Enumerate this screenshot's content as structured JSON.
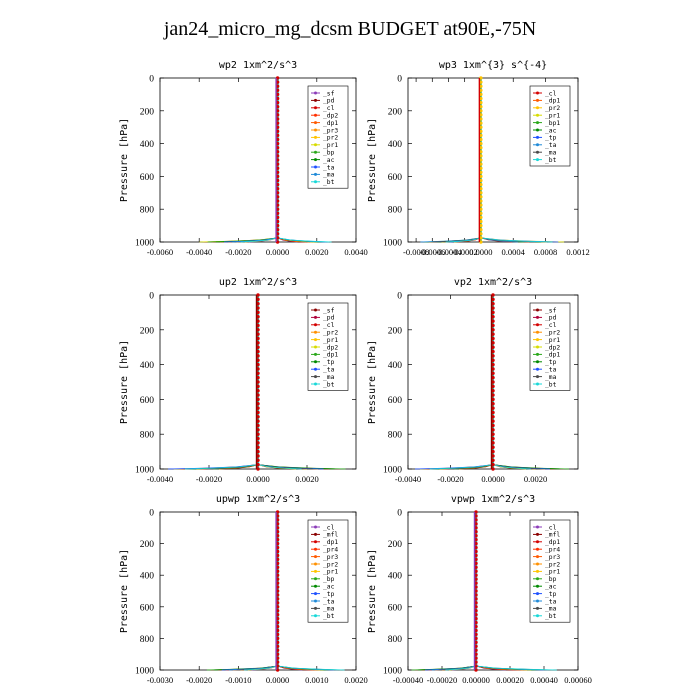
{
  "page": {
    "title": "jan24_micro_mg_dcsm  BUDGET at90E,-75N"
  },
  "chart_data": [
    {
      "type": "line",
      "title": "wp2   1xm^2/s^3",
      "ylabel": "Pressure [hPa]",
      "ylim": [
        1000,
        0
      ],
      "xlim": [
        -0.006,
        0.004
      ],
      "xticks": [
        -0.006,
        -0.004,
        -0.002,
        0.0,
        0.002,
        0.004
      ],
      "xtick_labels": [
        "-0.0060",
        "-0.0040",
        "-0.0020",
        "0.0000",
        "0.0020",
        "0.0040"
      ],
      "yticks": [
        0,
        200,
        400,
        600,
        800,
        1000
      ],
      "ytick_labels": [
        "0",
        "200",
        "400",
        "600",
        "800",
        "1000"
      ],
      "legend_position": "upper-right",
      "legend": [
        "_sf",
        "_pd",
        "_cl",
        "_dp2",
        "_dp1",
        "_pr3",
        "_pr2",
        "_pr1",
        "_bp",
        "_ac",
        "_ta",
        "_ma",
        "_bt"
      ],
      "colors": [
        "#8b3bb8",
        "#8b0000",
        "#d40000",
        "#ff3000",
        "#ff5a00",
        "#ff9000",
        "#ffc400",
        "#d7dc00",
        "#2aa81a",
        "#008a00",
        "#1e50ff",
        "#1f8ad8",
        "#18d8d8"
      ],
      "surface_spread": [
        -0.0042,
        0.0029
      ]
    },
    {
      "type": "line",
      "title": "wp3   1xm^{3} s^{-4}",
      "ylabel": "Pressure [hPa]",
      "ylim": [
        1000,
        0
      ],
      "xlim": [
        -0.0009,
        0.0012
      ],
      "xticks": [
        -0.0008,
        -0.0006,
        -0.0004,
        -0.0002,
        0.0,
        0.0004,
        0.0008,
        0.0012
      ],
      "xtick_labels": [
        "-0.0008",
        "-0.0006",
        "-0.0004",
        "-0.0002",
        "0.0000",
        "0.0004",
        "0.0008",
        "0.0012"
      ],
      "yticks": [
        0,
        200,
        400,
        600,
        800,
        1000
      ],
      "ytick_labels": [
        "0",
        "200",
        "400",
        "600",
        "800",
        "1000"
      ],
      "legend_position": "upper-right",
      "legend": [
        "_cl",
        "_dp1",
        "_pr2",
        "_pr1",
        "_bp1",
        "_ac",
        "_tp",
        "_ta",
        "_ma",
        "_bt"
      ],
      "colors": [
        "#d40000",
        "#ff5a00",
        "#ffc400",
        "#d7dc00",
        "#2aa81a",
        "#008a00",
        "#1e50ff",
        "#1f8ad8",
        "#4a4a4a",
        "#18d8d8"
      ],
      "surface_spread": [
        -0.0008,
        0.0011
      ]
    },
    {
      "type": "line",
      "title": "up2   1xm^2/s^3",
      "ylabel": "Pressure [hPa]",
      "ylim": [
        1000,
        0
      ],
      "xlim": [
        -0.004,
        0.004
      ],
      "xticks": [
        -0.004,
        -0.002,
        0.0,
        0.002
      ],
      "xtick_labels": [
        "-0.0040",
        "-0.0020",
        "0.0000",
        "0.0020"
      ],
      "yticks": [
        0,
        200,
        400,
        600,
        800,
        1000
      ],
      "ytick_labels": [
        "0",
        "200",
        "400",
        "600",
        "800",
        "1000"
      ],
      "legend_position": "upper-right",
      "legend": [
        "_sf",
        "_pd",
        "_cl",
        "_pr2",
        "_pr1",
        "_dp2",
        "_dp1",
        "_tp",
        "_ta",
        "_ma",
        "_bt"
      ],
      "colors": [
        "#8b0000",
        "#b0003a",
        "#d40000",
        "#ff9000",
        "#ffc400",
        "#d7dc00",
        "#2aa81a",
        "#008a00",
        "#1e50ff",
        "#4a4a4a",
        "#18d8d8"
      ],
      "surface_spread": [
        -0.0039,
        0.0038
      ]
    },
    {
      "type": "line",
      "title": "vp2   1xm^2/s^3",
      "ylabel": "Pressure [hPa]",
      "ylim": [
        1000,
        0
      ],
      "xlim": [
        -0.004,
        0.004
      ],
      "xticks": [
        -0.004,
        -0.002,
        0.0,
        0.002
      ],
      "xtick_labels": [
        "-0.0040",
        "-0.0020",
        "0.0000",
        "0.0020"
      ],
      "yticks": [
        0,
        200,
        400,
        600,
        800,
        1000
      ],
      "ytick_labels": [
        "0",
        "200",
        "400",
        "600",
        "800",
        "1000"
      ],
      "legend_position": "upper-right",
      "legend": [
        "_sf",
        "_pd",
        "_cl",
        "_pr2",
        "_pr1",
        "_dp2",
        "_dp1",
        "_tp",
        "_ta",
        "_ma",
        "_bt"
      ],
      "colors": [
        "#8b0000",
        "#b0003a",
        "#d40000",
        "#ff9000",
        "#ffc400",
        "#d7dc00",
        "#2aa81a",
        "#008a00",
        "#1e50ff",
        "#4a4a4a",
        "#18d8d8"
      ],
      "surface_spread": [
        -0.0039,
        0.0038
      ]
    },
    {
      "type": "line",
      "title": "upwp   1xm^2/s^3",
      "ylabel": "Pressure [hPa]",
      "ylim": [
        1000,
        0
      ],
      "xlim": [
        -0.003,
        0.002
      ],
      "xticks": [
        -0.003,
        -0.002,
        -0.001,
        0.0,
        0.001,
        0.002
      ],
      "xtick_labels": [
        "-0.0030",
        "-0.0020",
        "-0.0010",
        "0.0000",
        "0.0010",
        "0.0020"
      ],
      "yticks": [
        0,
        200,
        400,
        600,
        800,
        1000
      ],
      "ytick_labels": [
        "0",
        "200",
        "400",
        "600",
        "800",
        "1000"
      ],
      "legend_position": "upper-right",
      "legend": [
        "_cl",
        "_mfl",
        "_dp1",
        "_pr4",
        "_pr3",
        "_pr2",
        "_pr1",
        "_bp",
        "_ac",
        "_tp",
        "_ta",
        "_ma",
        "_bt"
      ],
      "colors": [
        "#8b3bb8",
        "#8b0000",
        "#d40000",
        "#ff3000",
        "#ff5a00",
        "#ff9000",
        "#ffc400",
        "#2aa81a",
        "#008a00",
        "#1e50ff",
        "#1f8ad8",
        "#4a4a4a",
        "#18d8d8"
      ],
      "surface_spread": [
        -0.0019,
        0.0018
      ]
    },
    {
      "type": "line",
      "title": "vpwp   1xm^2/s^3",
      "ylabel": "Pressure [hPa]",
      "ylim": [
        1000,
        0
      ],
      "xlim": [
        -0.0004,
        0.0006
      ],
      "xticks": [
        -0.0004,
        -0.0002,
        0.0,
        0.0002,
        0.0004,
        0.0006
      ],
      "xtick_labels": [
        "-0.00040",
        "-0.00020",
        "0.00000",
        "0.00020",
        "0.00040",
        "0.00060"
      ],
      "yticks": [
        0,
        200,
        400,
        600,
        800,
        1000
      ],
      "ytick_labels": [
        "0",
        "200",
        "400",
        "600",
        "800",
        "1000"
      ],
      "legend_position": "upper-right",
      "legend": [
        "_cl",
        "_mfl",
        "_dp1",
        "_pr4",
        "_pr3",
        "_pr2",
        "_pr1",
        "_bp",
        "_ac",
        "_tp",
        "_ta",
        "_ma",
        "_bt"
      ],
      "colors": [
        "#8b3bb8",
        "#8b0000",
        "#d40000",
        "#ff3000",
        "#ff5a00",
        "#ff9000",
        "#ffc400",
        "#2aa81a",
        "#008a00",
        "#1e50ff",
        "#1f8ad8",
        "#4a4a4a",
        "#18d8d8"
      ],
      "surface_spread": [
        -0.0004,
        0.0005
      ]
    }
  ]
}
